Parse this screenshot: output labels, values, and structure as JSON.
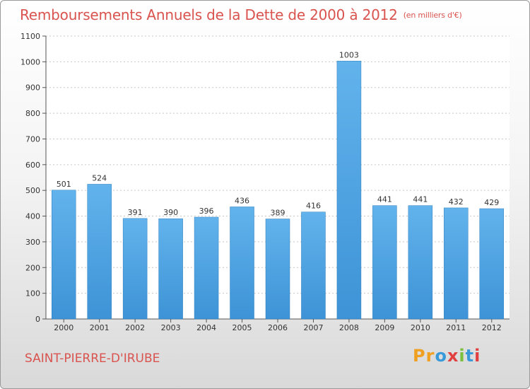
{
  "title": "Remboursements Annuels de la Dette de 2000 à 2012",
  "subtitle": "(en milliers d'€)",
  "city": "SAINT-PIERRE-D'IRUBE",
  "logo": {
    "letters": [
      "P",
      "r",
      "o",
      "x",
      "i",
      "t",
      "i"
    ],
    "colors": [
      "#f0a020",
      "#f0a020",
      "#3a9ad9",
      "#e04040",
      "#7cc040",
      "#3a9ad9",
      "#e04040"
    ]
  },
  "colors": {
    "bar": "#3d93d6",
    "bar_light": "#62b3ec",
    "title": "#d9534f"
  },
  "chart_data": {
    "type": "bar",
    "categories": [
      "2000",
      "2001",
      "2002",
      "2003",
      "2004",
      "2005",
      "2006",
      "2007",
      "2008",
      "2009",
      "2010",
      "2011",
      "2012"
    ],
    "values": [
      501,
      524,
      391,
      390,
      396,
      436,
      389,
      416,
      1003,
      441,
      441,
      432,
      429
    ],
    "ylim": [
      0,
      1100
    ],
    "yticks": [
      0,
      100,
      200,
      300,
      400,
      500,
      600,
      700,
      800,
      900,
      1000,
      1100
    ],
    "grid": true
  }
}
